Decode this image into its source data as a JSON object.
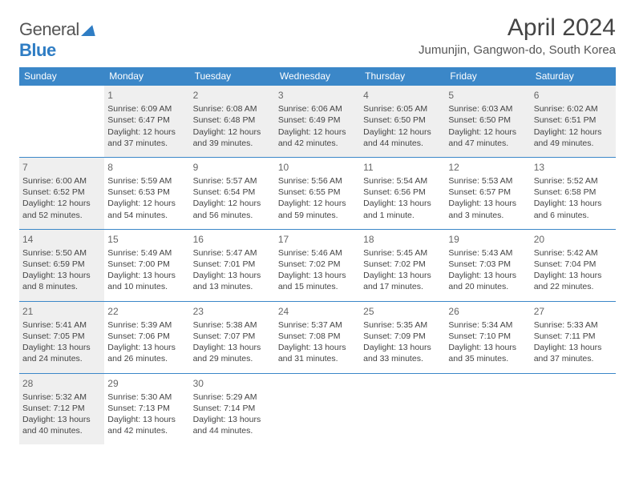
{
  "logo": {
    "text1": "General",
    "text2": "Blue"
  },
  "title": "April 2024",
  "location": "Jumunjin, Gangwon-do, South Korea",
  "colors": {
    "header_bg": "#3b87c8",
    "header_text": "#ffffff",
    "border": "#3b87c8",
    "shade_bg": "#efefef",
    "body_text": "#444444",
    "logo_blue": "#2f7dc4"
  },
  "day_headers": [
    "Sunday",
    "Monday",
    "Tuesday",
    "Wednesday",
    "Thursday",
    "Friday",
    "Saturday"
  ],
  "weeks": [
    [
      {
        "empty": true
      },
      {
        "day": "1",
        "shade": true,
        "sunrise": "Sunrise: 6:09 AM",
        "sunset": "Sunset: 6:47 PM",
        "daylight1": "Daylight: 12 hours",
        "daylight2": "and 37 minutes."
      },
      {
        "day": "2",
        "shade": true,
        "sunrise": "Sunrise: 6:08 AM",
        "sunset": "Sunset: 6:48 PM",
        "daylight1": "Daylight: 12 hours",
        "daylight2": "and 39 minutes."
      },
      {
        "day": "3",
        "shade": true,
        "sunrise": "Sunrise: 6:06 AM",
        "sunset": "Sunset: 6:49 PM",
        "daylight1": "Daylight: 12 hours",
        "daylight2": "and 42 minutes."
      },
      {
        "day": "4",
        "shade": true,
        "sunrise": "Sunrise: 6:05 AM",
        "sunset": "Sunset: 6:50 PM",
        "daylight1": "Daylight: 12 hours",
        "daylight2": "and 44 minutes."
      },
      {
        "day": "5",
        "shade": true,
        "sunrise": "Sunrise: 6:03 AM",
        "sunset": "Sunset: 6:50 PM",
        "daylight1": "Daylight: 12 hours",
        "daylight2": "and 47 minutes."
      },
      {
        "day": "6",
        "shade": true,
        "sunrise": "Sunrise: 6:02 AM",
        "sunset": "Sunset: 6:51 PM",
        "daylight1": "Daylight: 12 hours",
        "daylight2": "and 49 minutes."
      }
    ],
    [
      {
        "day": "7",
        "shade": true,
        "sunrise": "Sunrise: 6:00 AM",
        "sunset": "Sunset: 6:52 PM",
        "daylight1": "Daylight: 12 hours",
        "daylight2": "and 52 minutes."
      },
      {
        "day": "8",
        "sunrise": "Sunrise: 5:59 AM",
        "sunset": "Sunset: 6:53 PM",
        "daylight1": "Daylight: 12 hours",
        "daylight2": "and 54 minutes."
      },
      {
        "day": "9",
        "sunrise": "Sunrise: 5:57 AM",
        "sunset": "Sunset: 6:54 PM",
        "daylight1": "Daylight: 12 hours",
        "daylight2": "and 56 minutes."
      },
      {
        "day": "10",
        "sunrise": "Sunrise: 5:56 AM",
        "sunset": "Sunset: 6:55 PM",
        "daylight1": "Daylight: 12 hours",
        "daylight2": "and 59 minutes."
      },
      {
        "day": "11",
        "sunrise": "Sunrise: 5:54 AM",
        "sunset": "Sunset: 6:56 PM",
        "daylight1": "Daylight: 13 hours",
        "daylight2": "and 1 minute."
      },
      {
        "day": "12",
        "sunrise": "Sunrise: 5:53 AM",
        "sunset": "Sunset: 6:57 PM",
        "daylight1": "Daylight: 13 hours",
        "daylight2": "and 3 minutes."
      },
      {
        "day": "13",
        "sunrise": "Sunrise: 5:52 AM",
        "sunset": "Sunset: 6:58 PM",
        "daylight1": "Daylight: 13 hours",
        "daylight2": "and 6 minutes."
      }
    ],
    [
      {
        "day": "14",
        "shade": true,
        "sunrise": "Sunrise: 5:50 AM",
        "sunset": "Sunset: 6:59 PM",
        "daylight1": "Daylight: 13 hours",
        "daylight2": "and 8 minutes."
      },
      {
        "day": "15",
        "sunrise": "Sunrise: 5:49 AM",
        "sunset": "Sunset: 7:00 PM",
        "daylight1": "Daylight: 13 hours",
        "daylight2": "and 10 minutes."
      },
      {
        "day": "16",
        "sunrise": "Sunrise: 5:47 AM",
        "sunset": "Sunset: 7:01 PM",
        "daylight1": "Daylight: 13 hours",
        "daylight2": "and 13 minutes."
      },
      {
        "day": "17",
        "sunrise": "Sunrise: 5:46 AM",
        "sunset": "Sunset: 7:02 PM",
        "daylight1": "Daylight: 13 hours",
        "daylight2": "and 15 minutes."
      },
      {
        "day": "18",
        "sunrise": "Sunrise: 5:45 AM",
        "sunset": "Sunset: 7:02 PM",
        "daylight1": "Daylight: 13 hours",
        "daylight2": "and 17 minutes."
      },
      {
        "day": "19",
        "sunrise": "Sunrise: 5:43 AM",
        "sunset": "Sunset: 7:03 PM",
        "daylight1": "Daylight: 13 hours",
        "daylight2": "and 20 minutes."
      },
      {
        "day": "20",
        "sunrise": "Sunrise: 5:42 AM",
        "sunset": "Sunset: 7:04 PM",
        "daylight1": "Daylight: 13 hours",
        "daylight2": "and 22 minutes."
      }
    ],
    [
      {
        "day": "21",
        "shade": true,
        "sunrise": "Sunrise: 5:41 AM",
        "sunset": "Sunset: 7:05 PM",
        "daylight1": "Daylight: 13 hours",
        "daylight2": "and 24 minutes."
      },
      {
        "day": "22",
        "sunrise": "Sunrise: 5:39 AM",
        "sunset": "Sunset: 7:06 PM",
        "daylight1": "Daylight: 13 hours",
        "daylight2": "and 26 minutes."
      },
      {
        "day": "23",
        "sunrise": "Sunrise: 5:38 AM",
        "sunset": "Sunset: 7:07 PM",
        "daylight1": "Daylight: 13 hours",
        "daylight2": "and 29 minutes."
      },
      {
        "day": "24",
        "sunrise": "Sunrise: 5:37 AM",
        "sunset": "Sunset: 7:08 PM",
        "daylight1": "Daylight: 13 hours",
        "daylight2": "and 31 minutes."
      },
      {
        "day": "25",
        "sunrise": "Sunrise: 5:35 AM",
        "sunset": "Sunset: 7:09 PM",
        "daylight1": "Daylight: 13 hours",
        "daylight2": "and 33 minutes."
      },
      {
        "day": "26",
        "sunrise": "Sunrise: 5:34 AM",
        "sunset": "Sunset: 7:10 PM",
        "daylight1": "Daylight: 13 hours",
        "daylight2": "and 35 minutes."
      },
      {
        "day": "27",
        "sunrise": "Sunrise: 5:33 AM",
        "sunset": "Sunset: 7:11 PM",
        "daylight1": "Daylight: 13 hours",
        "daylight2": "and 37 minutes."
      }
    ],
    [
      {
        "day": "28",
        "shade": true,
        "sunrise": "Sunrise: 5:32 AM",
        "sunset": "Sunset: 7:12 PM",
        "daylight1": "Daylight: 13 hours",
        "daylight2": "and 40 minutes."
      },
      {
        "day": "29",
        "sunrise": "Sunrise: 5:30 AM",
        "sunset": "Sunset: 7:13 PM",
        "daylight1": "Daylight: 13 hours",
        "daylight2": "and 42 minutes."
      },
      {
        "day": "30",
        "sunrise": "Sunrise: 5:29 AM",
        "sunset": "Sunset: 7:14 PM",
        "daylight1": "Daylight: 13 hours",
        "daylight2": "and 44 minutes."
      },
      {
        "empty": true
      },
      {
        "empty": true
      },
      {
        "empty": true
      },
      {
        "empty": true
      }
    ]
  ]
}
